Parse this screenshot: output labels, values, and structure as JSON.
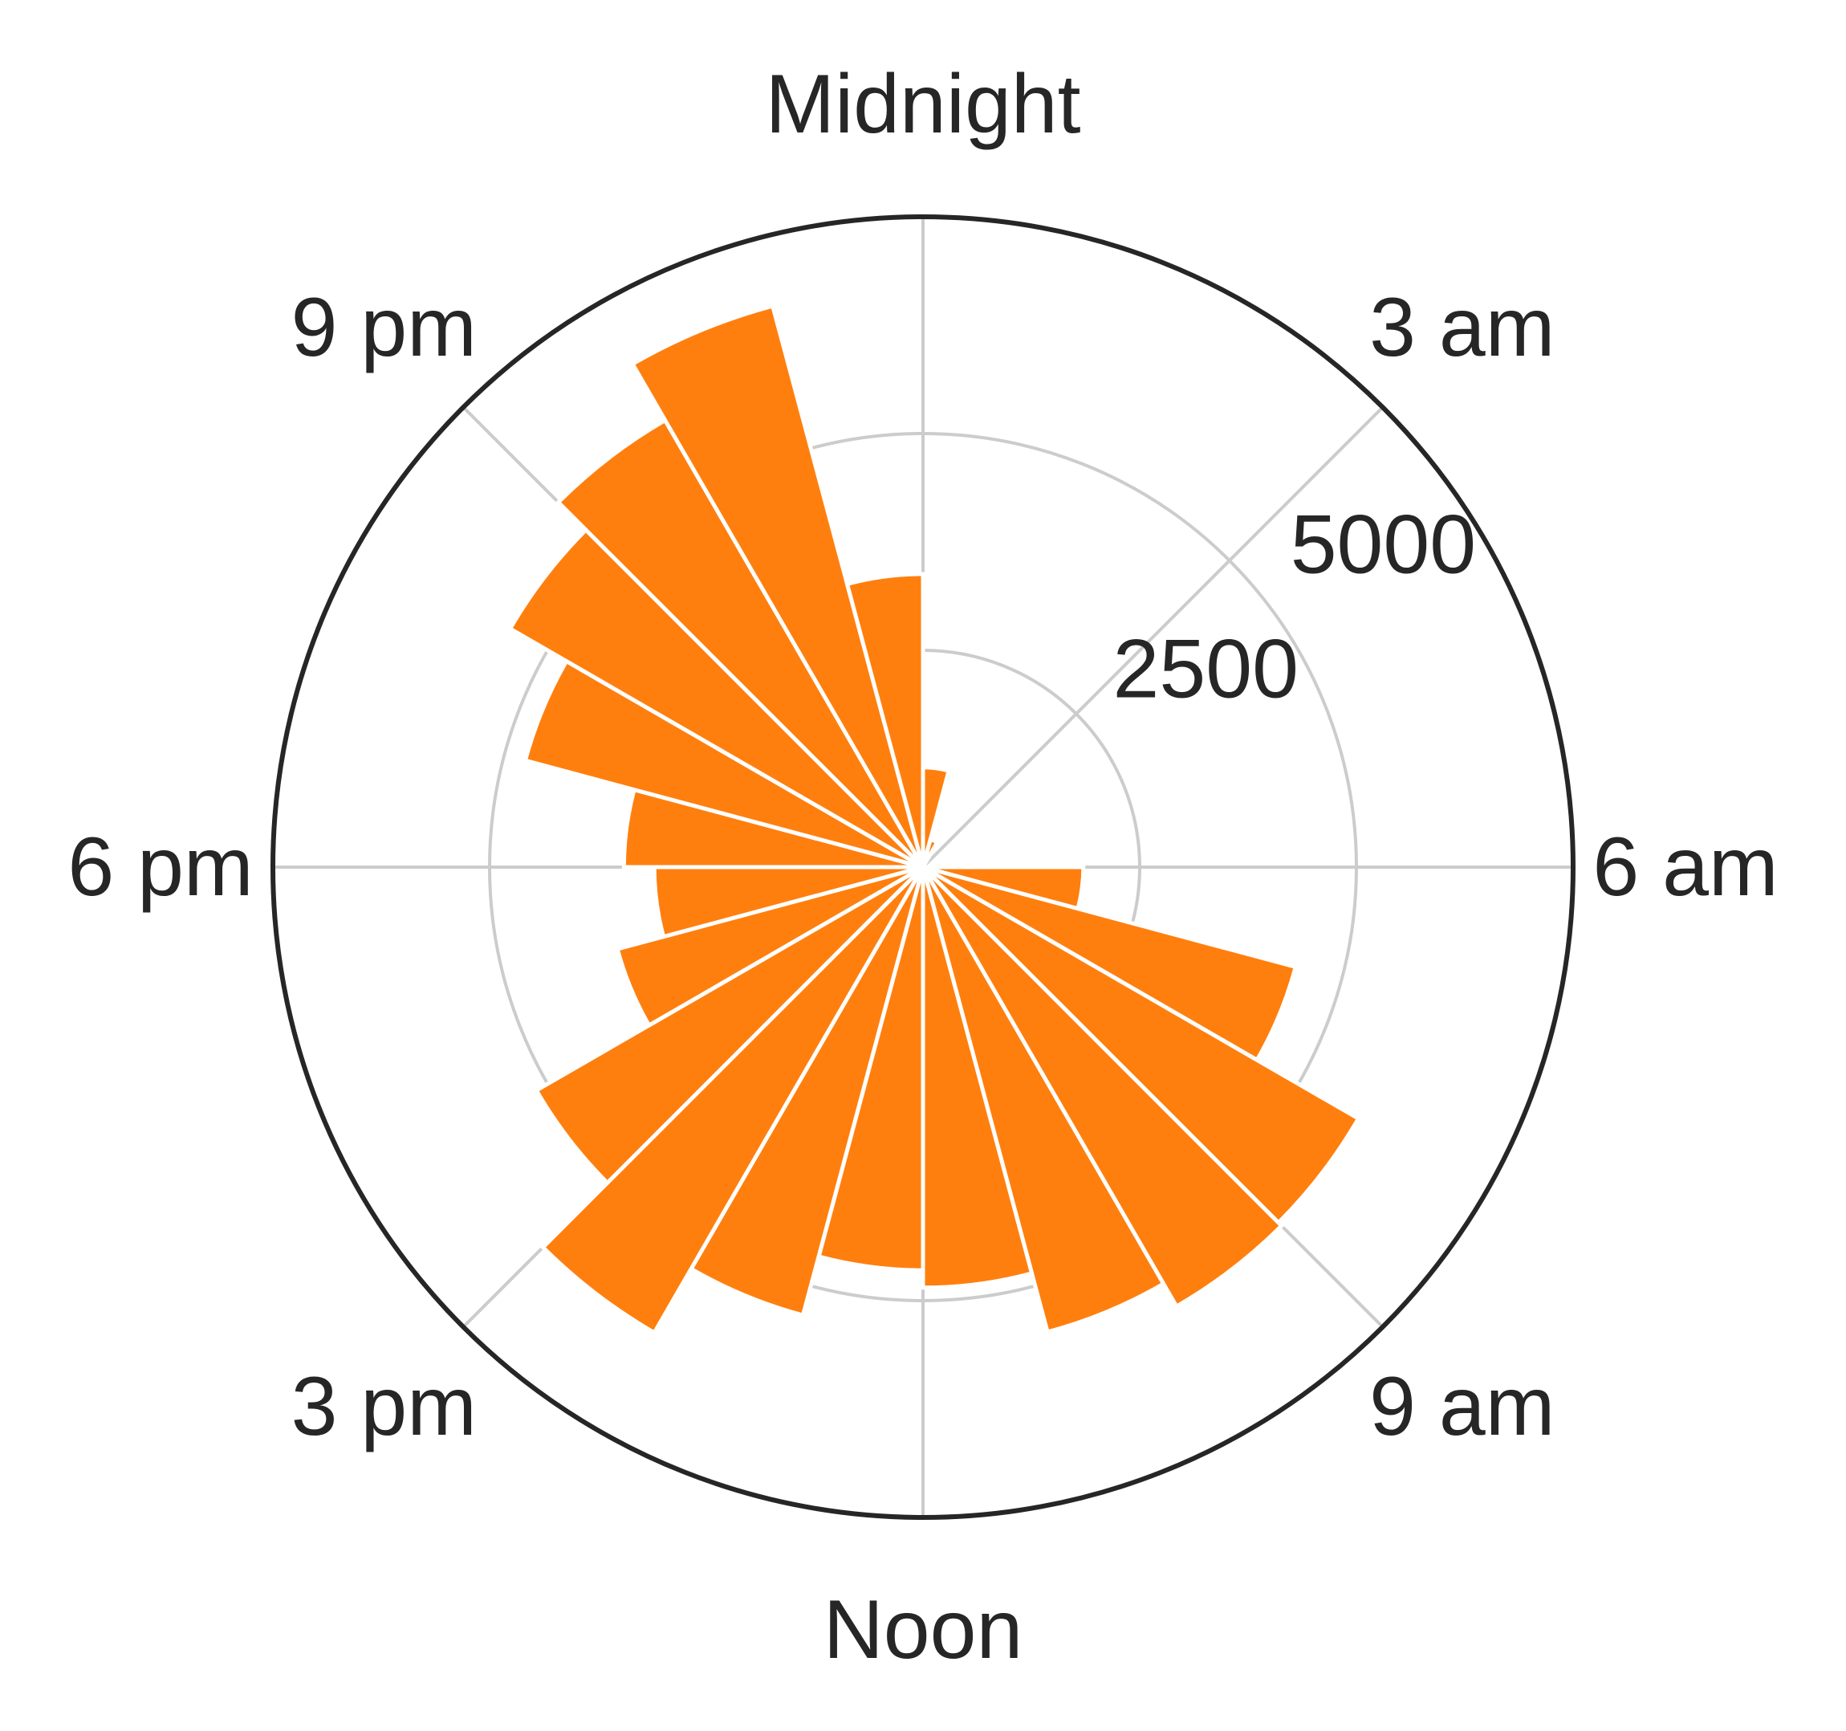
{
  "chart_data": {
    "type": "bar",
    "subtype": "polar",
    "title": "",
    "xlabel": "",
    "ylabel": "",
    "direction": "clockwise",
    "zero_location": "top",
    "categories": [
      "0",
      "1",
      "2",
      "3",
      "4",
      "5",
      "6",
      "7",
      "8",
      "9",
      "10",
      "11",
      "12",
      "13",
      "14",
      "15",
      "16",
      "17",
      "18",
      "19",
      "20",
      "21",
      "22",
      "23"
    ],
    "values": [
      1150,
      330,
      20,
      20,
      20,
      20,
      1850,
      4450,
      5800,
      5850,
      5550,
      4850,
      4650,
      5350,
      6200,
      5150,
      3650,
      3100,
      3450,
      4750,
      5500,
      5950,
      6700,
      3380
    ],
    "ylim": [
      0,
      7500
    ],
    "r_ticks": [
      2500,
      5000
    ],
    "r_tick_labels": [
      "2500",
      "5000"
    ],
    "theta_tick_labels": [
      "Midnight",
      "3 am",
      "6 am",
      "9 am",
      "Noon",
      "3 pm",
      "6 pm",
      "9 pm"
    ],
    "grid": true,
    "bar_color": "#ff7f0e",
    "grid_color": "#cccccc",
    "frame_color": "#262626"
  }
}
